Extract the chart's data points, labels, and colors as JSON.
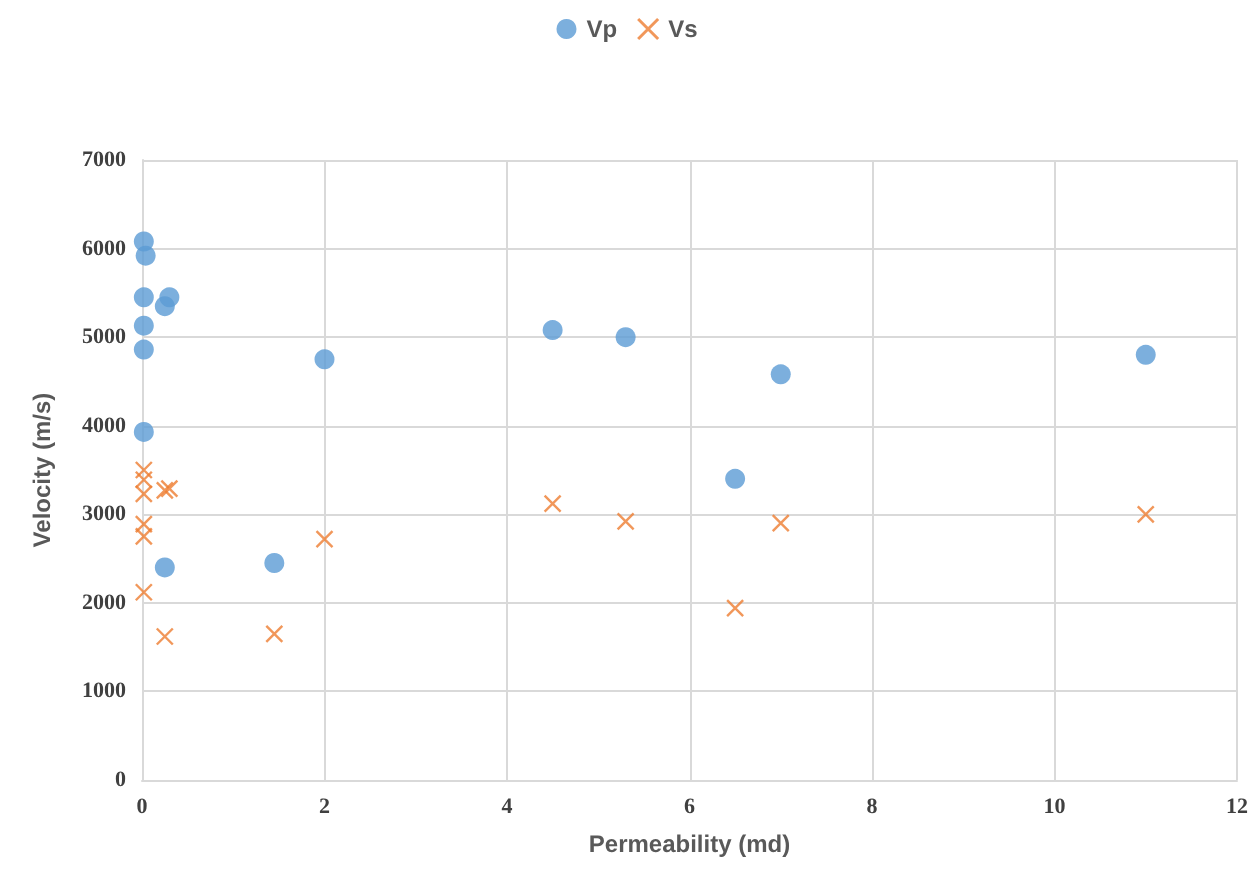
{
  "chart_data": {
    "type": "scatter",
    "xlabel": "Permeability (md)",
    "ylabel": "Velocity (m/s)",
    "xlim": [
      0,
      12
    ],
    "xticks": [
      0,
      2,
      4,
      6,
      8,
      10,
      12
    ],
    "ylim": [
      0,
      7000
    ],
    "yticks": [
      0,
      1000,
      2000,
      3000,
      4000,
      5000,
      6000,
      7000
    ],
    "grid": true,
    "legend": "top",
    "series": [
      {
        "name": "Vp",
        "color": "#5b9bd5",
        "marker": "circle",
        "x": [
          0.02,
          0.04,
          0.02,
          0.02,
          0.02,
          0.02,
          0.25,
          0.3,
          0.25,
          1.45,
          2,
          4.5,
          5.3,
          6.5,
          7,
          11
        ],
        "values": [
          6080,
          5920,
          5450,
          5130,
          4860,
          3930,
          5350,
          5450,
          2400,
          2450,
          4750,
          5080,
          5000,
          3400,
          4580,
          4800
        ]
      },
      {
        "name": "Vs",
        "color": "#ed7d31",
        "marker": "cross",
        "x": [
          0.02,
          0.02,
          0.02,
          0.02,
          0.02,
          0.02,
          0.25,
          0.3,
          0.25,
          1.45,
          2,
          4.5,
          5.3,
          6.5,
          7,
          11
        ],
        "values": [
          3500,
          3390,
          3230,
          2890,
          2750,
          2120,
          3270,
          3290,
          1620,
          1650,
          2720,
          3120,
          2920,
          1940,
          2900,
          3000
        ]
      }
    ]
  }
}
